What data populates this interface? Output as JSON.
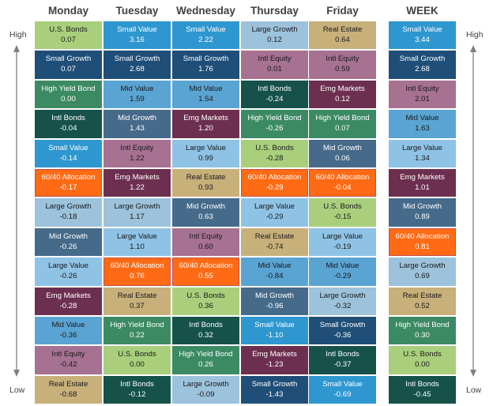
{
  "colors": {
    "U.S. Bonds": "#a9cf7c",
    "Small Value": "#2e97d0",
    "Large Growth": "#9cc2dc",
    "Real Estate": "#c8b07b",
    "Small Growth": "#1f4e78",
    "Intl Equity": "#a77191",
    "High Yield Bond": "#3b8a64",
    "Mid Value": "#5aa4d3",
    "Emg Markets": "#6d2f4f",
    "Intl Bonds": "#16524a",
    "Mid Growth": "#466a8a",
    "Large Value": "#8fc3e6",
    "60/40 Allocation": "#ff6a14"
  },
  "labels": {
    "high_left": "High",
    "high_right": "High",
    "low_left": "Low",
    "low_right": "Low"
  },
  "chart_data": {
    "type": "table",
    "columns": [
      {
        "name": "Monday",
        "rows": [
          [
            "U.S. Bonds",
            "0.07"
          ],
          [
            "Small Growth",
            "0.07"
          ],
          [
            "High Yield Bond",
            "0.00"
          ],
          [
            "Intl Bonds",
            "-0.04"
          ],
          [
            "Small Value",
            "-0.14"
          ],
          [
            "60/40 Allocation",
            "-0.17"
          ],
          [
            "Large Growth",
            "-0.18"
          ],
          [
            "Mid Growth",
            "-0.26"
          ],
          [
            "Large Value",
            "-0.26"
          ],
          [
            "Emg Markets",
            "-0.28"
          ],
          [
            "Mid Value",
            "-0.36"
          ],
          [
            "Intl Equity",
            "-0.42"
          ],
          [
            "Real Estate",
            "-0.68"
          ]
        ]
      },
      {
        "name": "Tuesday",
        "rows": [
          [
            "Small Value",
            "3.16"
          ],
          [
            "Small Growth",
            "2.68"
          ],
          [
            "Mid Value",
            "1.59"
          ],
          [
            "Mid Growth",
            "1.43"
          ],
          [
            "Intl Equity",
            "1.22"
          ],
          [
            "Emg Markets",
            "1.22"
          ],
          [
            "Large Growth",
            "1.17"
          ],
          [
            "Large Value",
            "1.10"
          ],
          [
            "60/40 Allocation",
            "0.76"
          ],
          [
            "Real Estate",
            "0.37"
          ],
          [
            "High Yield Bond",
            "0.22"
          ],
          [
            "U.S. Bonds",
            "0.00"
          ],
          [
            "Intl Bonds",
            "-0.12"
          ]
        ]
      },
      {
        "name": "Wednesday",
        "rows": [
          [
            "Small Value",
            "2.22"
          ],
          [
            "Small Growth",
            "1.76"
          ],
          [
            "Mid Value",
            "1.54"
          ],
          [
            "Emg Markets",
            "1.20"
          ],
          [
            "Large Value",
            "0.99"
          ],
          [
            "Real Estate",
            "0.93"
          ],
          [
            "Mid Growth",
            "0.63"
          ],
          [
            "Intl Equity",
            "0.60"
          ],
          [
            "60/40 Allocation",
            "0.55"
          ],
          [
            "U.S. Bonds",
            "0.36"
          ],
          [
            "Intl Bonds",
            "0.32"
          ],
          [
            "High Yield Bond",
            "0.26"
          ],
          [
            "Large Growth",
            "-0.09"
          ]
        ]
      },
      {
        "name": "Thursday",
        "rows": [
          [
            "Large Growth",
            "0.12"
          ],
          [
            "Intl Equity",
            "0.01"
          ],
          [
            "Intl Bonds",
            "-0.24"
          ],
          [
            "High Yield Bond",
            "-0.26"
          ],
          [
            "U.S. Bonds",
            "-0.28"
          ],
          [
            "60/40 Allocation",
            "-0.29"
          ],
          [
            "Large Value",
            "-0.29"
          ],
          [
            "Real Estate",
            "-0.74"
          ],
          [
            "Mid Value",
            "-0.84"
          ],
          [
            "Mid Growth",
            "-0.96"
          ],
          [
            "Small Value",
            "-1.10"
          ],
          [
            "Emg Markets",
            "-1.23"
          ],
          [
            "Small Growth",
            "-1.43"
          ]
        ]
      },
      {
        "name": "Friday",
        "rows": [
          [
            "Real Estate",
            "0.64"
          ],
          [
            "Intl Equity",
            "0.59"
          ],
          [
            "Emg Markets",
            "0.12"
          ],
          [
            "High Yield Bond",
            "0.07"
          ],
          [
            "Mid Growth",
            "0.06"
          ],
          [
            "60/40 Allocation",
            "-0.04"
          ],
          [
            "U.S. Bonds",
            "-0.15"
          ],
          [
            "Large Value",
            "-0.19"
          ],
          [
            "Mid Value",
            "-0.29"
          ],
          [
            "Large Growth",
            "-0.32"
          ],
          [
            "Small Growth",
            "-0.36"
          ],
          [
            "Intl Bonds",
            "-0.37"
          ],
          [
            "Small Value",
            "-0.69"
          ]
        ]
      },
      {
        "name": "WEEK",
        "rows": [
          [
            "Small Value",
            "3.44"
          ],
          [
            "Small Growth",
            "2.68"
          ],
          [
            "Intl Equity",
            "2.01"
          ],
          [
            "Mid Value",
            "1.63"
          ],
          [
            "Large Value",
            "1.34"
          ],
          [
            "Emg Markets",
            "1.01"
          ],
          [
            "Mid Growth",
            "0.89"
          ],
          [
            "60/40 Allocation",
            "0.81"
          ],
          [
            "Large Growth",
            "0.69"
          ],
          [
            "Real Estate",
            "0.52"
          ],
          [
            "High Yield Bond",
            "0.30"
          ],
          [
            "U.S. Bonds",
            "0.00"
          ],
          [
            "Intl Bonds",
            "-0.45"
          ]
        ]
      }
    ]
  }
}
